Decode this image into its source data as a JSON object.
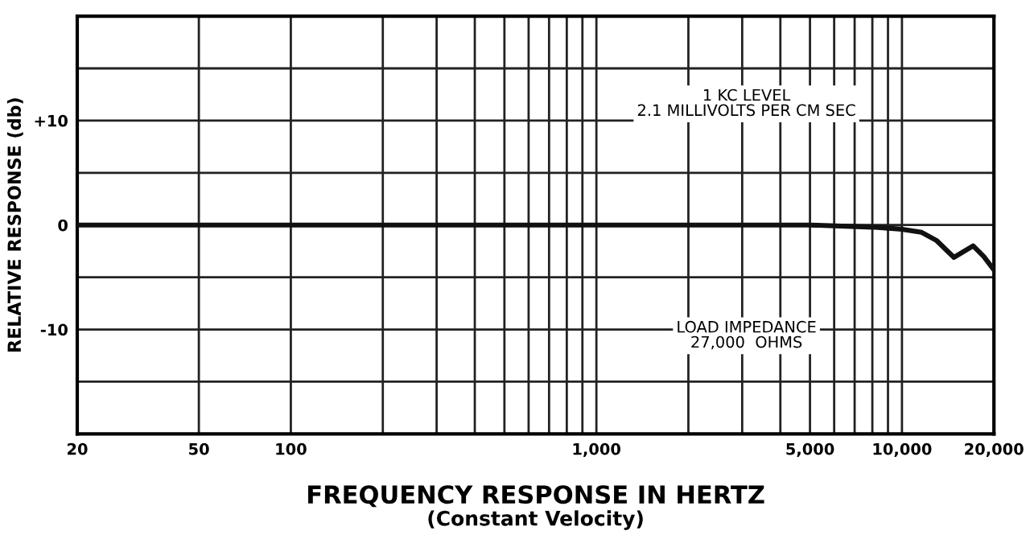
{
  "chart_data": {
    "type": "line",
    "xlabel": "FREQUENCY RESPONSE IN HERTZ",
    "ylabel": "RELATIVE RESPONSE (db)",
    "annotations": [
      "1 KC LEVEL\n2.1 MILLIVOLTS PER CM SEC",
      "LOAD IMPEDANCE\n27,000  OHMS",
      "(Constant Velocity)"
    ],
    "log": "x",
    "x": [
      20,
      100,
      1000,
      5000,
      8000,
      10000,
      11600,
      13000,
      14800,
      17100,
      18500,
      20000
    ],
    "series": [
      {
        "color": "#111111",
        "values": [
          0,
          0,
          0,
          0,
          -0.2,
          -0.4,
          -0.7,
          -1.5,
          -3.1,
          -2.0,
          -3.0,
          -4.3
        ]
      }
    ],
    "xlim": [
      20,
      20000
    ],
    "xticks": [
      20,
      50,
      100,
      {
        "value": 200,
        "label": null
      },
      {
        "value": 300,
        "label": null
      },
      {
        "value": 400,
        "label": null
      },
      {
        "value": 500,
        "label": null
      },
      {
        "value": 600,
        "label": null
      },
      {
        "value": 700,
        "label": null
      },
      {
        "value": 800,
        "label": null
      },
      {
        "value": 900,
        "label": null
      },
      {
        "value": 1000,
        "label": "1,000"
      },
      {
        "value": 2000,
        "label": null
      },
      {
        "value": 3000,
        "label": null
      },
      {
        "value": 4000,
        "label": null
      },
      {
        "value": 5000,
        "label": "5,000"
      },
      {
        "value": 6000,
        "label": null
      },
      {
        "value": 7000,
        "label": null
      },
      {
        "value": 8000,
        "label": null
      },
      {
        "value": 9000,
        "label": null
      },
      {
        "value": 10000,
        "label": "10,000"
      },
      {
        "value": 20000,
        "label": "20,000"
      }
    ],
    "ylim": [
      -20,
      20
    ],
    "yticks": [
      {
        "value": -15,
        "label": null
      },
      {
        "value": -10,
        "label": "-10"
      },
      {
        "value": -5,
        "label": null
      },
      0,
      {
        "value": 5,
        "label": null
      },
      {
        "value": 10,
        "label": "+10"
      },
      {
        "value": 15,
        "label": null
      }
    ],
    "grid": true,
    "line_style": "solid"
  }
}
